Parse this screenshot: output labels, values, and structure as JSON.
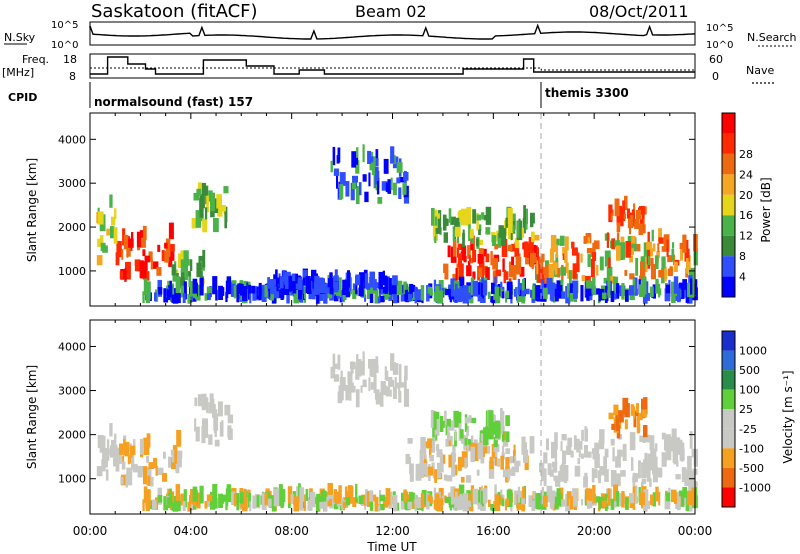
{
  "header": {
    "station": "Saskatoon (fitACF)",
    "beam": "Beam 02",
    "date": "08/Oct/2011"
  },
  "noise_panel": {
    "left_label": "N.Sky",
    "left_ticks": [
      "10^5",
      "10^0"
    ],
    "right_label": "N.Search",
    "right_ticks": [
      "10^5",
      "10^0"
    ]
  },
  "freq_panel": {
    "left_label_1": "Freq.",
    "left_label_2": "[MHz]",
    "left_ticks": [
      "18",
      "8"
    ],
    "right_label": "Nave",
    "right_ticks": [
      "60",
      "0"
    ]
  },
  "cpid": {
    "label": "CPID",
    "mode1": "normalsound (fast) 157",
    "mode2": "themis 3300"
  },
  "colors": {
    "power_scale": [
      "#0000ff",
      "#2f4fff",
      "#3a8a3a",
      "#49b349",
      "#e6d51a",
      "#f5a623",
      "#ee6a10",
      "#ff2a00",
      "#ff0000"
    ],
    "velocity_scale": [
      "#1a2ecc",
      "#2d6bd9",
      "#2a8c4a",
      "#5fcf3a",
      "#c8c8c4",
      "#c8c8c4",
      "#f5a020",
      "#ee6a10",
      "#ff0000"
    ]
  },
  "chart_data": [
    {
      "type": "heatmap",
      "name": "power",
      "ylabel": "Slant Range [km]",
      "yticks": [
        "1000",
        "2000",
        "3000",
        "4000"
      ],
      "ylim": [
        200,
        4600
      ],
      "colorbar_label": "Power [dB]",
      "colorbar_ticks": [
        "4",
        "8",
        "12",
        "16",
        "20",
        "24",
        "28"
      ]
    },
    {
      "type": "heatmap",
      "name": "velocity",
      "ylabel": "Slant Range [km]",
      "yticks": [
        "1000",
        "2000",
        "3000",
        "4000"
      ],
      "ylim": [
        200,
        4600
      ],
      "colorbar_label": "Velocity [m s⁻¹]",
      "colorbar_ticks": [
        "1000",
        "500",
        "100",
        "25",
        "-25",
        "-100",
        "-500",
        "-1000"
      ]
    }
  ],
  "x_axis": {
    "label": "Time UT",
    "ticks": [
      "00:00",
      "04:00",
      "08:00",
      "12:00",
      "16:00",
      "20:00",
      "00:00"
    ],
    "xlim_hours": [
      0,
      24
    ]
  },
  "mode_change_hour": 17.9
}
